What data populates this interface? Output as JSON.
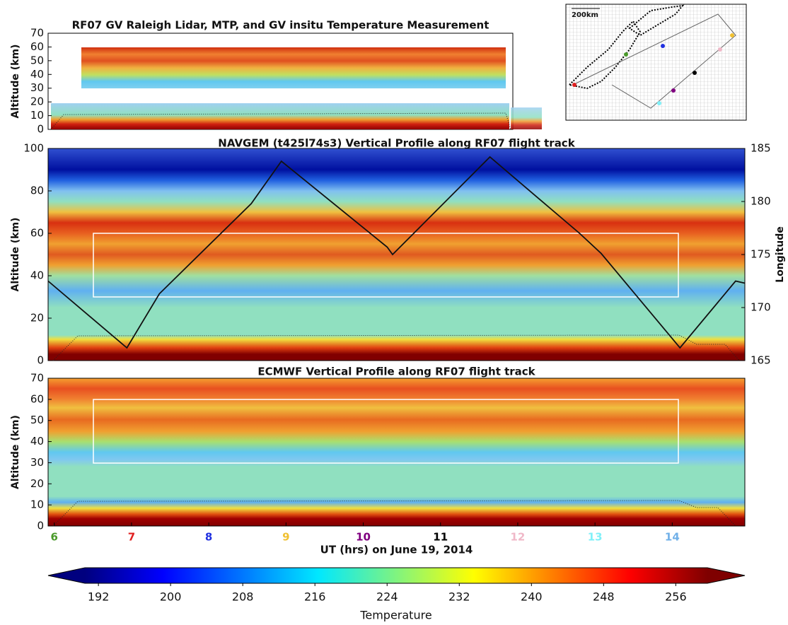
{
  "chart_data": [
    {
      "type": "contour",
      "title": "RF07 GV Raleigh Lidar, MTP, and GV insitu Temperature Measurement",
      "y_label": "Altitude (km)",
      "ylim": [
        0,
        70
      ],
      "yticks": [
        0,
        10,
        20,
        30,
        40,
        50,
        60,
        70
      ]
    },
    {
      "type": "contour",
      "title": "NAVGEM (t425l74s3) Vertical Profile along RF07 flight track",
      "y_label": "Altitude (km)",
      "y2_label": "Longitude",
      "xlim": [
        5.92,
        14.94
      ],
      "ylim": [
        0,
        100
      ],
      "yticks": [
        0,
        20,
        40,
        60,
        80,
        100
      ],
      "y2lim": [
        165,
        185
      ],
      "y2ticks": [
        165,
        170,
        175,
        180,
        185
      ],
      "x": [
        5.92,
        6.94,
        7.36,
        8.55,
        8.94,
        10.31,
        10.38,
        11.64,
        12.8,
        13.08,
        14.1,
        14.82,
        14.94
      ],
      "series": [
        {
          "axis": "y2",
          "color": "#111111",
          "values": [
            172.5,
            166.2,
            171.3,
            179.8,
            183.8,
            175.7,
            175.0,
            184.2,
            177.0,
            175.1,
            166.2,
            172.5,
            172.3
          ]
        }
      ]
    },
    {
      "type": "contour",
      "title": "ECMWF Vertical Profile along RF07 flight track",
      "y_label": "Altitude (km)",
      "x_label": "UT (hrs) on June 19, 2014",
      "xlim": [
        5.92,
        14.94
      ],
      "ylim": [
        0,
        70
      ],
      "yticks": [
        0,
        10,
        20,
        30,
        40,
        50,
        60,
        70
      ],
      "xticks": [
        6,
        7,
        8,
        9,
        10,
        11,
        12,
        13,
        14
      ],
      "xtick_colors": [
        "#4a9a2a",
        "#e02020",
        "#2030e0",
        "#f0c030",
        "#800080",
        "#000000",
        "#f0b8c8",
        "#80f0f8",
        "#70b0e8"
      ]
    },
    {
      "type": "colorbar",
      "label": "Temperature",
      "clim": [
        190.5,
        259.5
      ],
      "ticks": [
        192,
        200,
        208,
        216,
        224,
        232,
        240,
        248,
        256
      ]
    }
  ],
  "map": {
    "scale_label": "200km"
  }
}
